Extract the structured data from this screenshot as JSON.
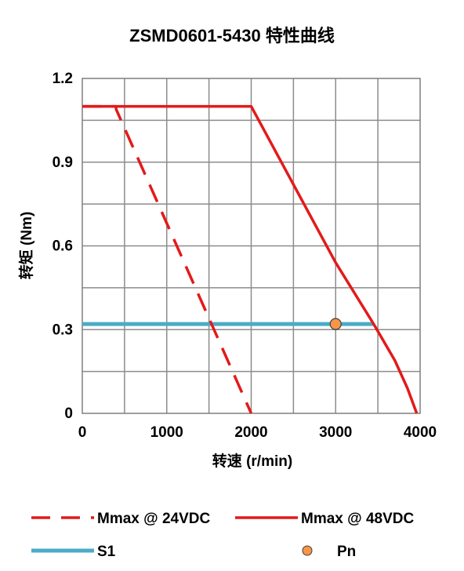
{
  "chart_data": {
    "type": "line",
    "title": "ZSMD0601-5430 特性曲线",
    "xlabel": "转速 (r/min)",
    "ylabel": "转矩 (Nm)",
    "xlim": [
      0,
      4000
    ],
    "ylim": [
      0,
      1.2
    ],
    "x_ticks": [
      "0",
      "1000",
      "2000",
      "3000",
      "4000"
    ],
    "y_ticks": [
      "0",
      "0.3",
      "0.6",
      "0.9",
      "1.2"
    ],
    "grid": true,
    "legend_position": "bottom",
    "series": [
      {
        "name": "Mmax @ 24VDC",
        "style": "dashed",
        "color": "#e31a1a",
        "points": [
          [
            0,
            1.1
          ],
          [
            400,
            1.1
          ],
          [
            400,
            1.09
          ],
          [
            2000,
            0
          ]
        ]
      },
      {
        "name": "Mmax @ 48VDC",
        "style": "solid",
        "color": "#e31a1a",
        "points": [
          [
            0,
            1.1
          ],
          [
            2000,
            1.1
          ],
          [
            2500,
            0.82
          ],
          [
            3000,
            0.54
          ],
          [
            3450,
            0.32
          ],
          [
            3700,
            0.19
          ],
          [
            3850,
            0.09
          ],
          [
            3960,
            0
          ]
        ]
      },
      {
        "name": "S1",
        "style": "solid",
        "color": "#4bacc6",
        "points": [
          [
            0,
            0.32
          ],
          [
            3450,
            0.32
          ]
        ]
      },
      {
        "name": "Pn",
        "style": "marker",
        "color": "#f79646",
        "points": [
          [
            3000,
            0.32
          ]
        ]
      }
    ]
  }
}
